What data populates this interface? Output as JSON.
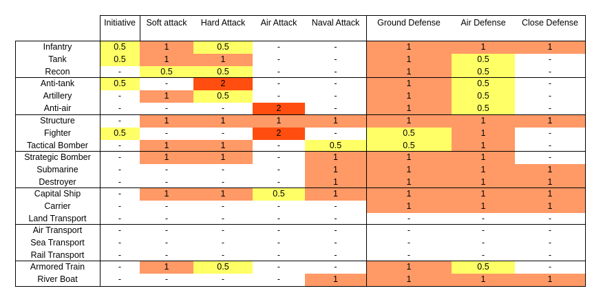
{
  "colors": {
    "yellow": "#ffff66",
    "orange": "#ff9966",
    "red": "#ff4e0f"
  },
  "headers": [
    "Initiative",
    "Soft attack",
    "Hard Attack",
    "Air Attack",
    "Naval Attack",
    "Ground Defense",
    "Air Defense",
    "Close Defense"
  ],
  "groups": [
    [
      {
        "name": "Infantry",
        "cells": [
          [
            "0.5",
            "y"
          ],
          [
            "1",
            "o"
          ],
          [
            "0.5",
            "y"
          ],
          [
            "-",
            ""
          ],
          [
            "-",
            ""
          ],
          [
            "1",
            "o"
          ],
          [
            "1",
            "o"
          ],
          [
            "1",
            "o"
          ]
        ]
      },
      {
        "name": "Tank",
        "cells": [
          [
            "0.5",
            "y"
          ],
          [
            "1",
            "o"
          ],
          [
            "1",
            "o"
          ],
          [
            "-",
            ""
          ],
          [
            "-",
            ""
          ],
          [
            "1",
            "o"
          ],
          [
            "0.5",
            "y"
          ],
          [
            "-",
            ""
          ]
        ]
      },
      {
        "name": "Recon",
        "cells": [
          [
            "-",
            ""
          ],
          [
            "0.5",
            "y"
          ],
          [
            "0.5",
            "y"
          ],
          [
            "-",
            ""
          ],
          [
            "-",
            ""
          ],
          [
            "1",
            "o"
          ],
          [
            "0.5",
            "y"
          ],
          [
            "-",
            ""
          ]
        ]
      }
    ],
    [
      {
        "name": "Anti-tank",
        "cells": [
          [
            "0.5",
            "y"
          ],
          [
            "-",
            ""
          ],
          [
            "2",
            "r"
          ],
          [
            "-",
            ""
          ],
          [
            "-",
            ""
          ],
          [
            "1",
            "o"
          ],
          [
            "0.5",
            "y"
          ],
          [
            "-",
            ""
          ]
        ]
      },
      {
        "name": "Artillery",
        "cells": [
          [
            "-",
            ""
          ],
          [
            "1",
            "o"
          ],
          [
            "0.5",
            "y"
          ],
          [
            "-",
            ""
          ],
          [
            "-",
            ""
          ],
          [
            "1",
            "o"
          ],
          [
            "0.5",
            "y"
          ],
          [
            "-",
            ""
          ]
        ]
      },
      {
        "name": "Anti-air",
        "cells": [
          [
            "-",
            ""
          ],
          [
            "-",
            ""
          ],
          [
            "-",
            ""
          ],
          [
            "2",
            "r"
          ],
          [
            "-",
            ""
          ],
          [
            "1",
            "o"
          ],
          [
            "0.5",
            "y"
          ],
          [
            "-",
            ""
          ]
        ]
      }
    ],
    [
      {
        "name": "Structure",
        "cells": [
          [
            "-",
            ""
          ],
          [
            "1",
            "o"
          ],
          [
            "1",
            "o"
          ],
          [
            "1",
            "o"
          ],
          [
            "1",
            "o"
          ],
          [
            "1",
            "o"
          ],
          [
            "1",
            "o"
          ],
          [
            "1",
            "o"
          ]
        ]
      },
      {
        "name": "Fighter",
        "cells": [
          [
            "0.5",
            "y"
          ],
          [
            "-",
            ""
          ],
          [
            "-",
            ""
          ],
          [
            "2",
            "r"
          ],
          [
            "-",
            ""
          ],
          [
            "0.5",
            "y"
          ],
          [
            "1",
            "o"
          ],
          [
            "-",
            ""
          ]
        ]
      },
      {
        "name": "Tactical Bomber",
        "cells": [
          [
            "-",
            ""
          ],
          [
            "1",
            "o"
          ],
          [
            "1",
            "o"
          ],
          [
            "-",
            ""
          ],
          [
            "0.5",
            "y"
          ],
          [
            "0.5",
            "y"
          ],
          [
            "1",
            "o"
          ],
          [
            "-",
            ""
          ]
        ]
      }
    ],
    [
      {
        "name": "Strategic Bomber",
        "cells": [
          [
            "-",
            ""
          ],
          [
            "1",
            "o"
          ],
          [
            "1",
            "o"
          ],
          [
            "-",
            ""
          ],
          [
            "1",
            "o"
          ],
          [
            "1",
            "o"
          ],
          [
            "1",
            "o"
          ],
          [
            "-",
            ""
          ]
        ]
      },
      {
        "name": "Submarine",
        "cells": [
          [
            "-",
            ""
          ],
          [
            "-",
            ""
          ],
          [
            "-",
            ""
          ],
          [
            "-",
            ""
          ],
          [
            "1",
            "o"
          ],
          [
            "1",
            "o"
          ],
          [
            "1",
            "o"
          ],
          [
            "1",
            "o"
          ]
        ]
      },
      {
        "name": "Destroyer",
        "cells": [
          [
            "-",
            ""
          ],
          [
            "-",
            ""
          ],
          [
            "-",
            ""
          ],
          [
            "-",
            ""
          ],
          [
            "1",
            "o"
          ],
          [
            "1",
            "o"
          ],
          [
            "1",
            "o"
          ],
          [
            "1",
            "o"
          ]
        ]
      }
    ],
    [
      {
        "name": "Capital Ship",
        "cells": [
          [
            "-",
            ""
          ],
          [
            "1",
            "o"
          ],
          [
            "1",
            "o"
          ],
          [
            "0.5",
            "y"
          ],
          [
            "1",
            "o"
          ],
          [
            "1",
            "o"
          ],
          [
            "1",
            "o"
          ],
          [
            "1",
            "o"
          ]
        ]
      },
      {
        "name": "Carrier",
        "cells": [
          [
            "-",
            ""
          ],
          [
            "-",
            ""
          ],
          [
            "-",
            ""
          ],
          [
            "-",
            ""
          ],
          [
            "-",
            ""
          ],
          [
            "1",
            "o"
          ],
          [
            "1",
            "o"
          ],
          [
            "1",
            "o"
          ]
        ]
      },
      {
        "name": "Land Transport",
        "cells": [
          [
            "-",
            ""
          ],
          [
            "-",
            ""
          ],
          [
            "-",
            ""
          ],
          [
            "-",
            ""
          ],
          [
            "-",
            ""
          ],
          [
            "-",
            ""
          ],
          [
            "-",
            ""
          ],
          [
            "-",
            ""
          ]
        ]
      }
    ],
    [
      {
        "name": "Air Transport",
        "cells": [
          [
            "-",
            ""
          ],
          [
            "-",
            ""
          ],
          [
            "-",
            ""
          ],
          [
            "-",
            ""
          ],
          [
            "-",
            ""
          ],
          [
            "-",
            ""
          ],
          [
            "-",
            ""
          ],
          [
            "-",
            ""
          ]
        ]
      },
      {
        "name": "Sea Transport",
        "cells": [
          [
            "-",
            ""
          ],
          [
            "-",
            ""
          ],
          [
            "-",
            ""
          ],
          [
            "-",
            ""
          ],
          [
            "-",
            ""
          ],
          [
            "-",
            ""
          ],
          [
            "-",
            ""
          ],
          [
            "-",
            ""
          ]
        ]
      },
      {
        "name": "Rail Transport",
        "cells": [
          [
            "-",
            ""
          ],
          [
            "-",
            ""
          ],
          [
            "-",
            ""
          ],
          [
            "-",
            ""
          ],
          [
            "-",
            ""
          ],
          [
            "-",
            ""
          ],
          [
            "-",
            ""
          ],
          [
            "-",
            ""
          ]
        ]
      }
    ],
    [
      {
        "name": "Armored Train",
        "cells": [
          [
            "-",
            ""
          ],
          [
            "1",
            "o"
          ],
          [
            "0.5",
            "y"
          ],
          [
            "-",
            ""
          ],
          [
            "-",
            ""
          ],
          [
            "1",
            "o"
          ],
          [
            "0.5",
            "y"
          ],
          [
            "-",
            ""
          ]
        ]
      },
      {
        "name": "River Boat",
        "cells": [
          [
            "-",
            ""
          ],
          [
            "-",
            ""
          ],
          [
            "-",
            ""
          ],
          [
            "-",
            ""
          ],
          [
            "1",
            "o"
          ],
          [
            "1",
            "o"
          ],
          [
            "1",
            "o"
          ],
          [
            "1",
            "o"
          ]
        ]
      }
    ]
  ]
}
